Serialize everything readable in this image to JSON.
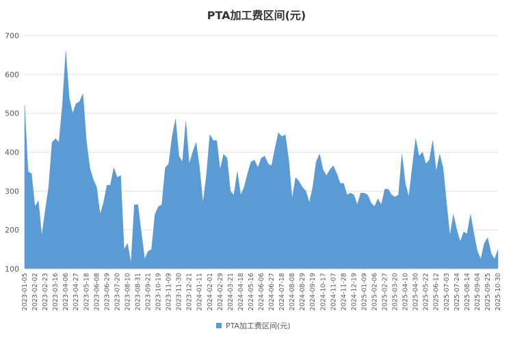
{
  "colors": {
    "series": "#5B9BD5",
    "grid": "#E0E0E0",
    "axis": "#BFBFBF",
    "text": "#595959",
    "title": "#333333"
  },
  "chart_data": {
    "type": "area",
    "title": "PTA加工费区间(元)",
    "xlabel": "",
    "ylabel": "",
    "ylim": [
      100,
      700
    ],
    "yticks": [
      100,
      200,
      300,
      400,
      500,
      600,
      700
    ],
    "grid": true,
    "legend_position": "bottom",
    "x_tick_labels": [
      "2023-01-05",
      "2023-02-02",
      "2023-02-23",
      "2023-03-16",
      "2023-04-06",
      "2023-04-27",
      "2023-05-18",
      "2023-06-08",
      "2023-06-29",
      "2023-07-20",
      "2023-08-10",
      "2023-08-31",
      "2023-09-21",
      "2023-10-19",
      "2023-11-09",
      "2023-11-30",
      "2023-12-21",
      "2024-01-11",
      "2024-02-01",
      "2024-02-29",
      "2024-03-21",
      "2024-04-18",
      "2024-05-16",
      "2024-06-06",
      "2024-06-27",
      "2024-07-18",
      "2024-08-08",
      "2024-08-29",
      "2024-09-19",
      "2024-10-17",
      "2024-11-07",
      "2024-11-28",
      "2024-12-19",
      "2025-01-09",
      "2025-02-06",
      "2025-02-27",
      "2025-03-20",
      "2025-04-10",
      "2025-04-30",
      "2025-05-22",
      "2025-06-12",
      "2025-07-03",
      "2025-07-24",
      "2025-08-14",
      "2025-09-04",
      "2025-09-25",
      "2025-10-30"
    ],
    "series": [
      {
        "name": "PTA加工费区间(元)",
        "values": [
          520,
          350,
          345,
          260,
          275,
          185,
          250,
          310,
          425,
          435,
          425,
          520,
          660,
          540,
          500,
          525,
          530,
          550,
          430,
          360,
          330,
          310,
          240,
          270,
          315,
          315,
          360,
          335,
          340,
          150,
          165,
          115,
          265,
          265,
          195,
          125,
          145,
          150,
          240,
          260,
          265,
          360,
          370,
          440,
          485,
          390,
          375,
          480,
          370,
          400,
          425,
          360,
          270,
          340,
          445,
          430,
          430,
          355,
          395,
          385,
          300,
          290,
          350,
          290,
          310,
          345,
          375,
          380,
          360,
          385,
          390,
          370,
          365,
          410,
          450,
          440,
          445,
          380,
          280,
          335,
          325,
          310,
          300,
          270,
          310,
          375,
          395,
          355,
          340,
          355,
          365,
          345,
          320,
          320,
          290,
          295,
          290,
          265,
          295,
          295,
          290,
          270,
          260,
          280,
          265,
          305,
          305,
          290,
          285,
          290,
          395,
          320,
          285,
          360,
          435,
          390,
          400,
          370,
          380,
          430,
          350,
          395,
          360,
          270,
          185,
          240,
          200,
          170,
          195,
          190,
          240,
          190,
          145,
          125,
          165,
          180,
          140,
          125,
          150
        ]
      }
    ]
  }
}
